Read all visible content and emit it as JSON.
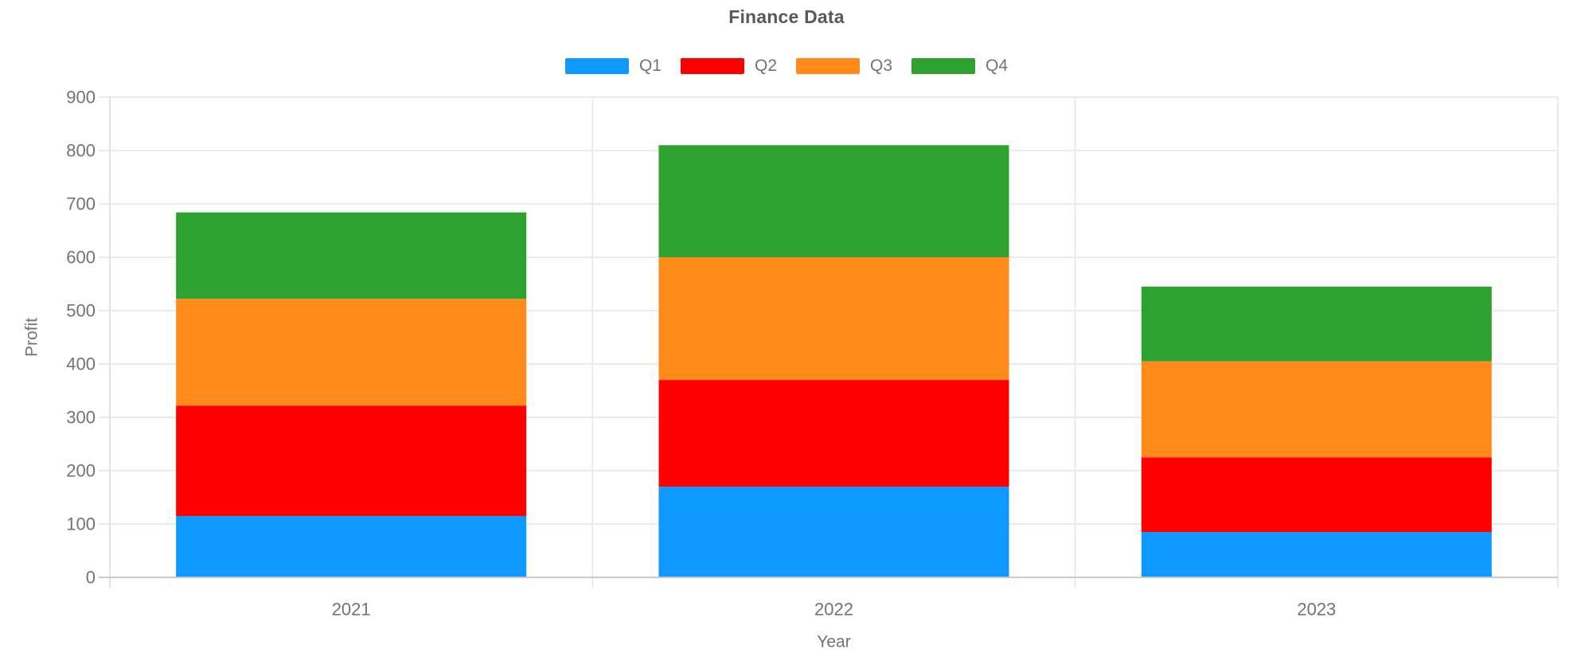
{
  "chart_data": {
    "type": "bar",
    "stacked": true,
    "title": "Finance Data",
    "xlabel": "Year",
    "ylabel": "Profit",
    "categories": [
      "2021",
      "2022",
      "2023"
    ],
    "series": [
      {
        "name": "Q1",
        "color": "#0D99FF",
        "values": [
          115,
          170,
          85
        ]
      },
      {
        "name": "Q2",
        "color": "#FF0000",
        "values": [
          207,
          200,
          140
        ]
      },
      {
        "name": "Q3",
        "color": "#FF8C1A",
        "values": [
          200,
          230,
          180
        ]
      },
      {
        "name": "Q4",
        "color": "#2FA12E",
        "values": [
          162,
          210,
          140
        ]
      }
    ],
    "ylim": [
      0,
      900
    ],
    "yticks": [
      0,
      100,
      200,
      300,
      400,
      500,
      600,
      700,
      800,
      900
    ],
    "grid": true,
    "legend_position": "top-center"
  },
  "style": {
    "background": "#FFFFFF",
    "title_color": "#595959",
    "label_color": "#737373",
    "grid_color": "#EBEBEB",
    "axis_line_color": "#C9C9C9",
    "y_axis_line_color": "#E2E2E2"
  }
}
